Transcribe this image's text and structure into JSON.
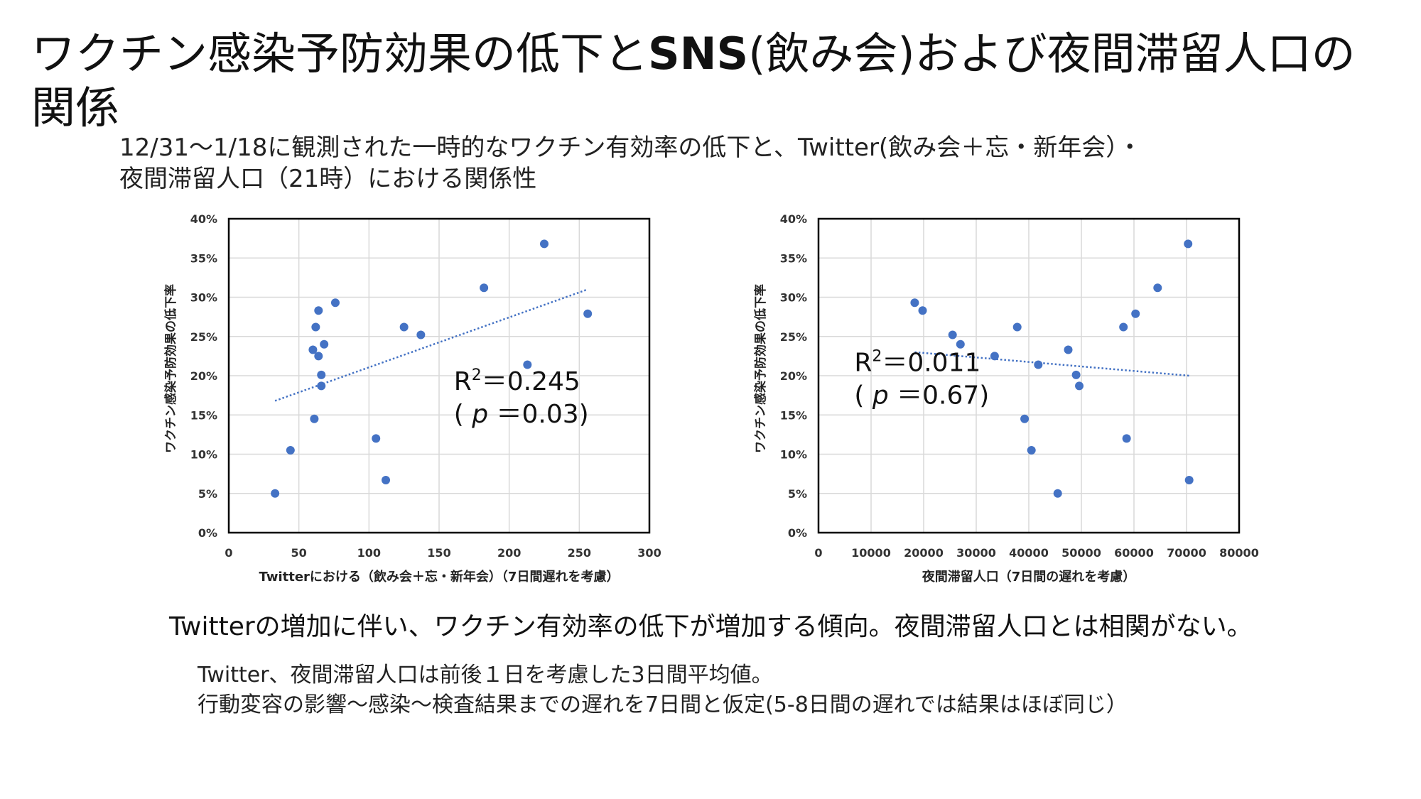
{
  "title": {
    "part1": "ワクチン感染予防効果の低下と",
    "part2": "SNS",
    "part3": "(飲み会)および夜間滞留人口の関係"
  },
  "subtitle": {
    "line1": "12/31～1/18に観測された一時的なワクチン有効率の低下と、Twitter(飲み会＋忘・新年会）・",
    "line2": "夜間滞留人口（21時）における関係性"
  },
  "conclusion": "Twitterの増加に伴い、ワクチン有効率の低下が増加する傾向。夜間滞留人口とは相関がない。",
  "notes": [
    "Twitter、夜間滞留人口は前後１日を考慮した3日間平均値。",
    "行動変容の影響～感染～検査結果までの遅れを7日間と仮定(5-8日間の遅れでは結果はほぼ同じ）"
  ],
  "colors": {
    "marker": "#4472C4",
    "grid": "#d9d9d9",
    "axis": "#000000"
  },
  "chart_data": [
    {
      "type": "scatter",
      "xlabel": "Twitterにおける（飲み会＋忘・新年会）（7日間遅れを考慮）",
      "ylabel": "ワクチン感染予防効果の低下率",
      "xlim": [
        0,
        300
      ],
      "ylim": [
        0,
        0.4
      ],
      "xticks": [
        0,
        50,
        100,
        150,
        200,
        250,
        300
      ],
      "xtick_labels": [
        "0",
        "50",
        "100",
        "150",
        "200",
        "250",
        "300"
      ],
      "yticks": [
        0,
        0.05,
        0.1,
        0.15,
        0.2,
        0.25,
        0.3,
        0.35,
        0.4
      ],
      "ytick_labels": [
        "0%",
        "5%",
        "10%",
        "15%",
        "20%",
        "25%",
        "30%",
        "35%",
        "40%"
      ],
      "grid": true,
      "points": [
        {
          "x": 33,
          "y": 0.05
        },
        {
          "x": 44,
          "y": 0.105
        },
        {
          "x": 60,
          "y": 0.233
        },
        {
          "x": 61,
          "y": 0.145
        },
        {
          "x": 62,
          "y": 0.262
        },
        {
          "x": 64,
          "y": 0.225
        },
        {
          "x": 64,
          "y": 0.283
        },
        {
          "x": 66,
          "y": 0.187
        },
        {
          "x": 66,
          "y": 0.201
        },
        {
          "x": 68,
          "y": 0.24
        },
        {
          "x": 76,
          "y": 0.293
        },
        {
          "x": 105,
          "y": 0.12
        },
        {
          "x": 112,
          "y": 0.067
        },
        {
          "x": 125,
          "y": 0.262
        },
        {
          "x": 137,
          "y": 0.252
        },
        {
          "x": 182,
          "y": 0.312
        },
        {
          "x": 213,
          "y": 0.214
        },
        {
          "x": 225,
          "y": 0.368
        },
        {
          "x": 256,
          "y": 0.279
        }
      ],
      "trendline": {
        "x": [
          33,
          256
        ],
        "y": [
          0.168,
          0.31
        ]
      },
      "annotation": {
        "r2_prefix": "R",
        "r2_sup": "2",
        "r2_value": "＝0.245",
        "p_open": "( ",
        "p_sym": "p",
        "p_value": " ＝0.03)"
      }
    },
    {
      "type": "scatter",
      "xlabel": "夜間滞留人口（7日間の遅れを考慮）",
      "ylabel": "ワクチン感染予防効果の低下率",
      "xlim": [
        0,
        80000
      ],
      "ylim": [
        0,
        0.4
      ],
      "xticks": [
        0,
        10000,
        20000,
        30000,
        40000,
        50000,
        60000,
        70000,
        80000
      ],
      "xtick_labels": [
        "0",
        "10000",
        "20000",
        "30000",
        "40000",
        "50000",
        "60000",
        "70000",
        "80000"
      ],
      "yticks": [
        0,
        0.05,
        0.1,
        0.15,
        0.2,
        0.25,
        0.3,
        0.35,
        0.4
      ],
      "ytick_labels": [
        "0%",
        "5%",
        "10%",
        "15%",
        "20%",
        "25%",
        "30%",
        "35%",
        "40%"
      ],
      "grid": true,
      "points": [
        {
          "x": 18300,
          "y": 0.293
        },
        {
          "x": 19800,
          "y": 0.283
        },
        {
          "x": 25500,
          "y": 0.252
        },
        {
          "x": 27000,
          "y": 0.24
        },
        {
          "x": 33500,
          "y": 0.225
        },
        {
          "x": 37800,
          "y": 0.262
        },
        {
          "x": 39200,
          "y": 0.145
        },
        {
          "x": 40500,
          "y": 0.105
        },
        {
          "x": 41800,
          "y": 0.214
        },
        {
          "x": 45500,
          "y": 0.05
        },
        {
          "x": 47500,
          "y": 0.233
        },
        {
          "x": 49000,
          "y": 0.201
        },
        {
          "x": 49600,
          "y": 0.187
        },
        {
          "x": 58000,
          "y": 0.262
        },
        {
          "x": 58600,
          "y": 0.12
        },
        {
          "x": 60300,
          "y": 0.279
        },
        {
          "x": 64500,
          "y": 0.312
        },
        {
          "x": 70300,
          "y": 0.368
        },
        {
          "x": 70500,
          "y": 0.067
        }
      ],
      "trendline": {
        "x": [
          18300,
          70500
        ],
        "y": [
          0.23,
          0.2
        ]
      },
      "annotation": {
        "r2_prefix": "R",
        "r2_sup": "2",
        "r2_value": "＝0.011",
        "p_open": "( ",
        "p_sym": "p",
        "p_value": " ＝0.67)"
      }
    }
  ]
}
